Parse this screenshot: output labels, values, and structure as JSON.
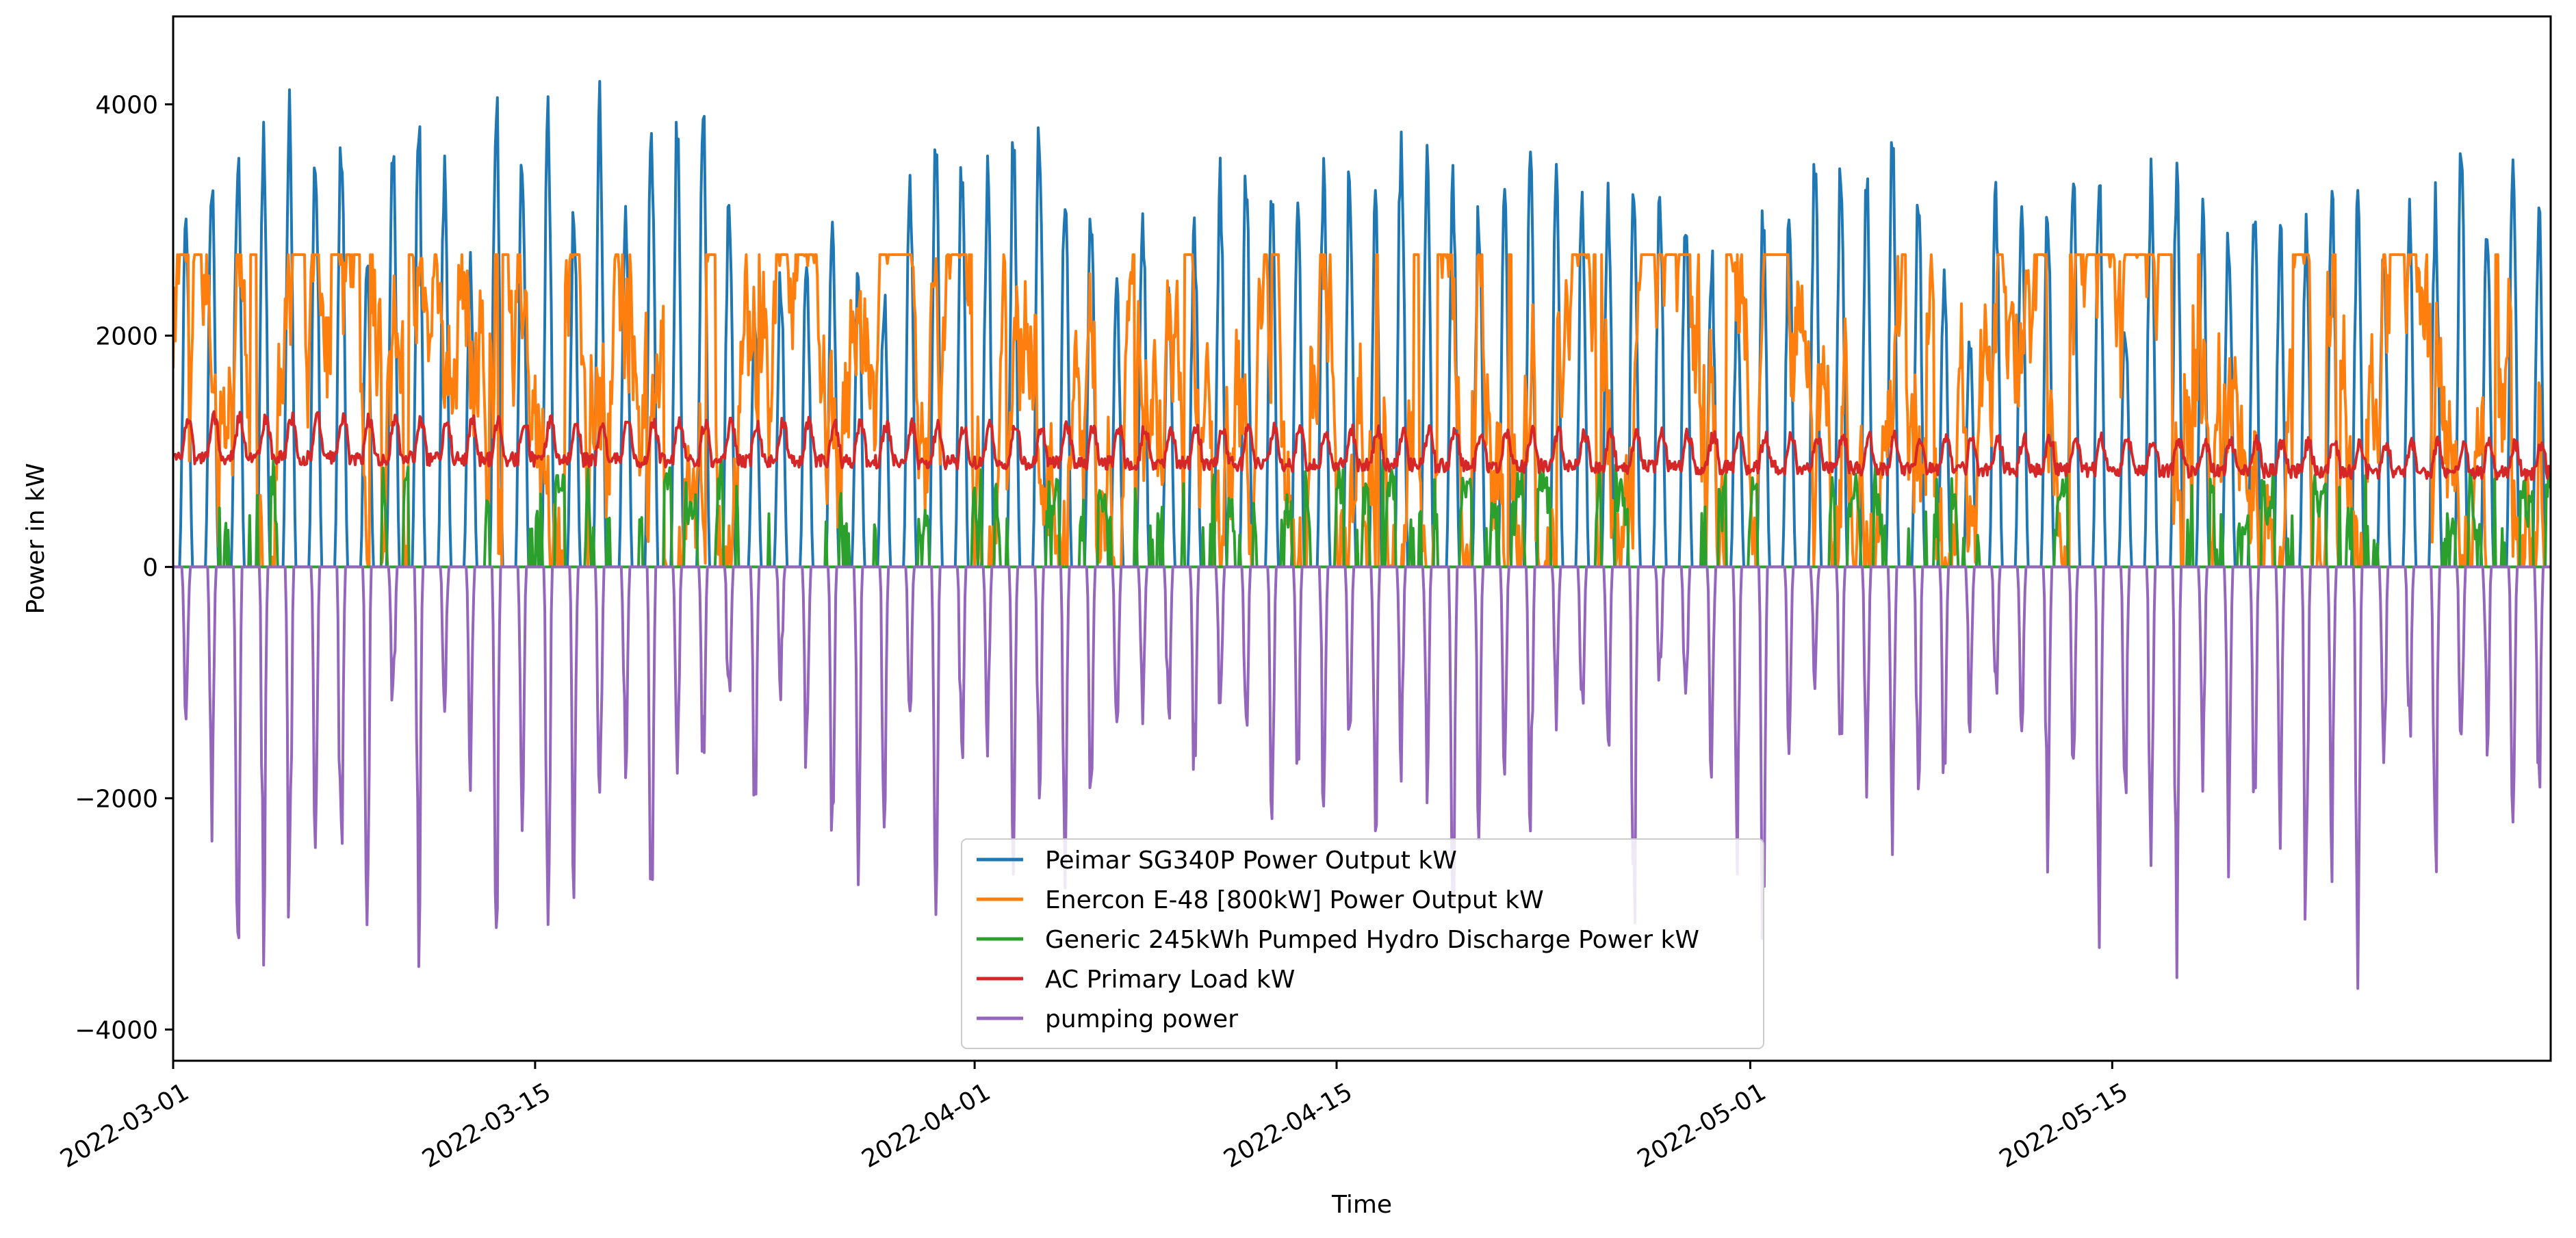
{
  "chart_data": {
    "type": "line",
    "xlabel": "Time",
    "ylabel": "Power in kW",
    "x_range": [
      "2022-03-01",
      "2022-05-31"
    ],
    "ylim": [
      -4270,
      4760
    ],
    "x_ticks": [
      {
        "date": "2022-03-01",
        "label": "2022-03-01"
      },
      {
        "date": "2022-03-15",
        "label": "2022-03-15"
      },
      {
        "date": "2022-04-01",
        "label": "2022-04-01"
      },
      {
        "date": "2022-04-15",
        "label": "2022-04-15"
      },
      {
        "date": "2022-05-01",
        "label": "2022-05-01"
      },
      {
        "date": "2022-05-15",
        "label": "2022-05-15"
      }
    ],
    "y_ticks": [
      {
        "value": -4000,
        "label": "−4000"
      },
      {
        "value": -2000,
        "label": "−2000"
      },
      {
        "value": 0,
        "label": "0"
      },
      {
        "value": 2000,
        "label": "2000"
      },
      {
        "value": 4000,
        "label": "4000"
      }
    ],
    "grid": false,
    "legend_position": "lower-center",
    "series": [
      {
        "name": "Peimar SG340P Power Output kW",
        "color": "#1f77b4",
        "daily_peaks_kW": [
          3150,
          3600,
          3800,
          3850,
          4150,
          3900,
          3880,
          2800,
          3950,
          4050,
          3600,
          2750,
          4350,
          3700,
          4100,
          3300,
          4220,
          3400,
          4000,
          4100,
          4200,
          3500,
          2300,
          2700,
          2800,
          3150,
          2700,
          2500,
          3600,
          4000,
          3700,
          3600,
          3900,
          4150,
          3600,
          3200,
          2600,
          3300,
          2750,
          3100,
          3550,
          3650,
          3500,
          3550,
          3600,
          3650,
          3300,
          3970,
          3750,
          3550,
          3300,
          3300,
          3700,
          3600,
          3450,
          3500,
          3600,
          3450,
          3250,
          2900,
          2550,
          3300,
          3100,
          3800,
          3800,
          3600,
          3950,
          3450,
          2700,
          2100,
          3400,
          3450,
          3250,
          3650,
          3600,
          2300,
          3550,
          3650,
          3300,
          3100,
          3450,
          3100,
          3050,
          3450,
          3400,
          2850,
          3300,
          3350,
          3800,
          3150,
          3650,
          3300
        ],
        "shape": "daily bell curve, 06:00-18:00, zero at night"
      },
      {
        "name": "Enercon E-48 [800kW] Power Output kW",
        "color": "#ff7f0e",
        "typical_range_kW": [
          0,
          2700
        ],
        "max_kW": 2700,
        "shape": "intermittent wind output, frequently saturated at 2700"
      },
      {
        "name": "Generic 245kWh Pumped Hydro Discharge Power kW",
        "color": "#2ca02c",
        "typical_range_kW": [
          0,
          1350
        ],
        "shape": "night-time discharge pulses"
      },
      {
        "name": "AC Primary Load kW",
        "color": "#d62728",
        "typical_range_kW": [
          700,
          1480
        ],
        "shape": "daily load profile, base ~900, peaks ~1300 (March) declining to ~1150 (May)"
      },
      {
        "name": "pumping power",
        "color": "#9467bd",
        "typical_range_kW": [
          -3900,
          0
        ],
        "daily_troughs_kW": [
          -1500,
          -2400,
          -3900,
          -3550,
          -3600,
          -2650,
          -3450,
          -3700,
          -1500,
          -3500,
          -1300,
          -2000,
          -3800,
          -2600,
          -3900,
          -3100,
          -2500,
          -2150,
          -3900,
          -1900,
          -2000,
          -1600,
          -2400,
          -1200,
          -2050,
          -2750,
          -2900,
          -2500,
          -1600,
          -3300,
          -2000,
          -1700,
          -2900,
          -2300,
          -3000,
          -2500,
          -1700,
          -1400,
          -1600,
          -2200,
          -1800,
          -2000,
          -2500,
          -2200,
          -2300,
          -1800,
          -2700,
          -1900,
          -2100,
          -3800,
          -2500,
          -2000,
          -2700,
          -1500,
          -1700,
          -2200,
          -3900,
          -1200,
          -1600,
          -2000,
          -2800,
          -3900,
          -2000,
          -1200,
          -1900,
          -2500,
          -3150,
          -2500,
          -2200,
          -1600,
          -1300,
          -1700,
          -2700,
          -2000,
          -3900,
          -2500,
          -3200,
          -3900,
          -2000,
          -2700,
          -2300,
          -2600,
          -3600,
          -2800,
          -3900,
          -2300,
          -1800,
          -3100,
          -2000,
          -1700,
          -2500,
          -2500
        ],
        "shape": "negative pulses during daytime surplus"
      }
    ]
  }
}
